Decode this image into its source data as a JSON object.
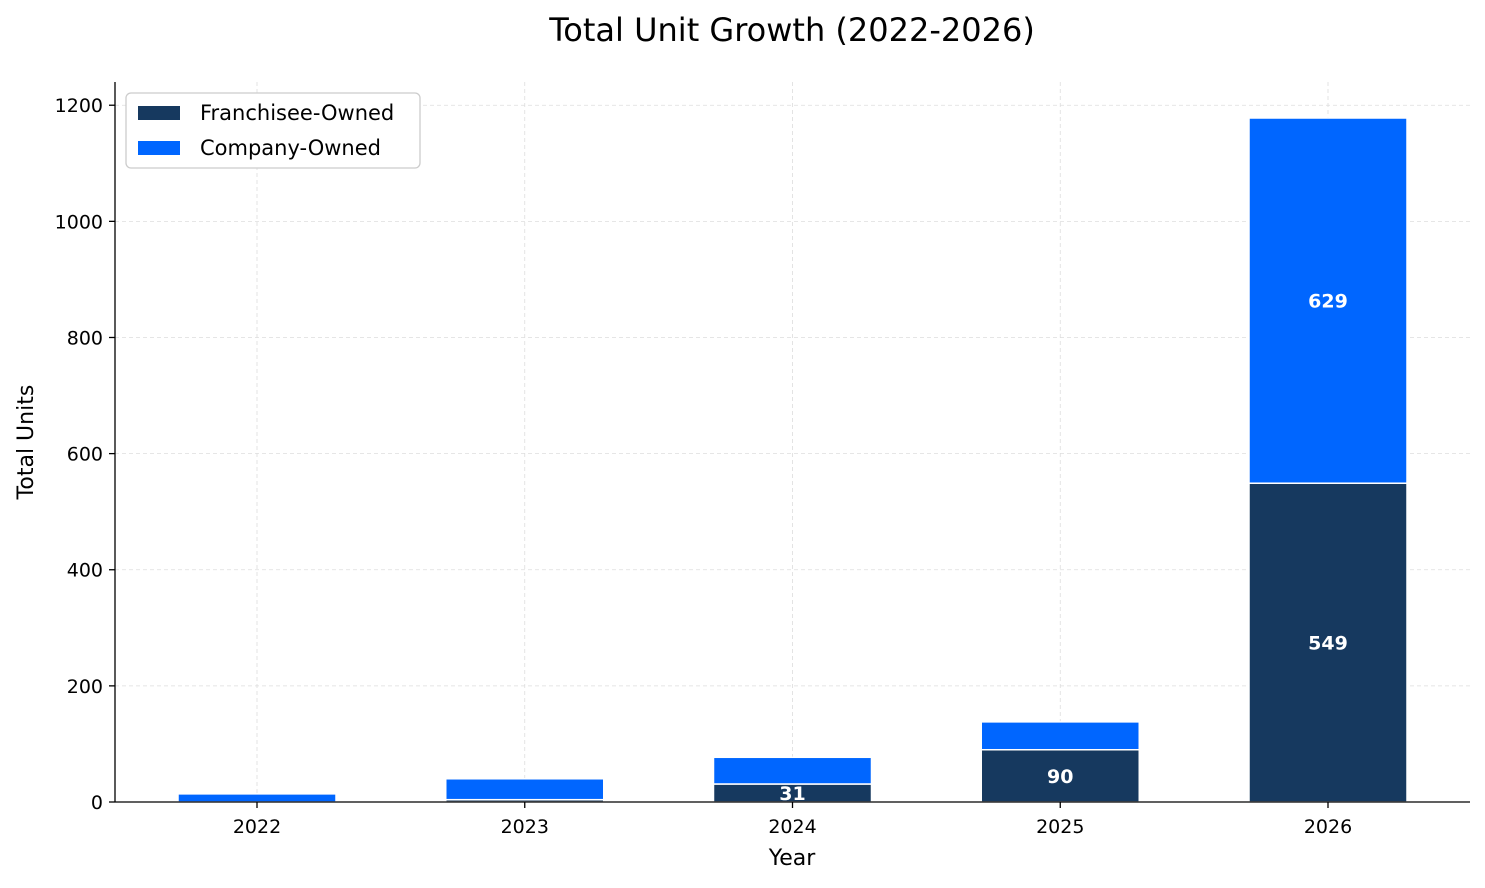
{
  "chart_data": {
    "type": "bar",
    "stacked": true,
    "title": "Total Unit Growth (2022-2026)",
    "xlabel": "Year",
    "ylabel": "Total Units",
    "categories": [
      "2022",
      "2023",
      "2024",
      "2025",
      "2026"
    ],
    "series": [
      {
        "name": "Franchisee-Owned",
        "color": "#16395f",
        "values": [
          0,
          4,
          31,
          90,
          549
        ],
        "labels": [
          "",
          "",
          "31",
          "90",
          "549"
        ]
      },
      {
        "name": "Company-Owned",
        "color": "#0066ff",
        "values": [
          14,
          36,
          46,
          48,
          629
        ],
        "labels": [
          "",
          "",
          "",
          "",
          "629"
        ]
      }
    ],
    "ylim": [
      0,
      1240
    ],
    "yticks": [
      0,
      200,
      400,
      600,
      800,
      1000,
      1200
    ],
    "grid": true,
    "legend_position": "top-left"
  }
}
